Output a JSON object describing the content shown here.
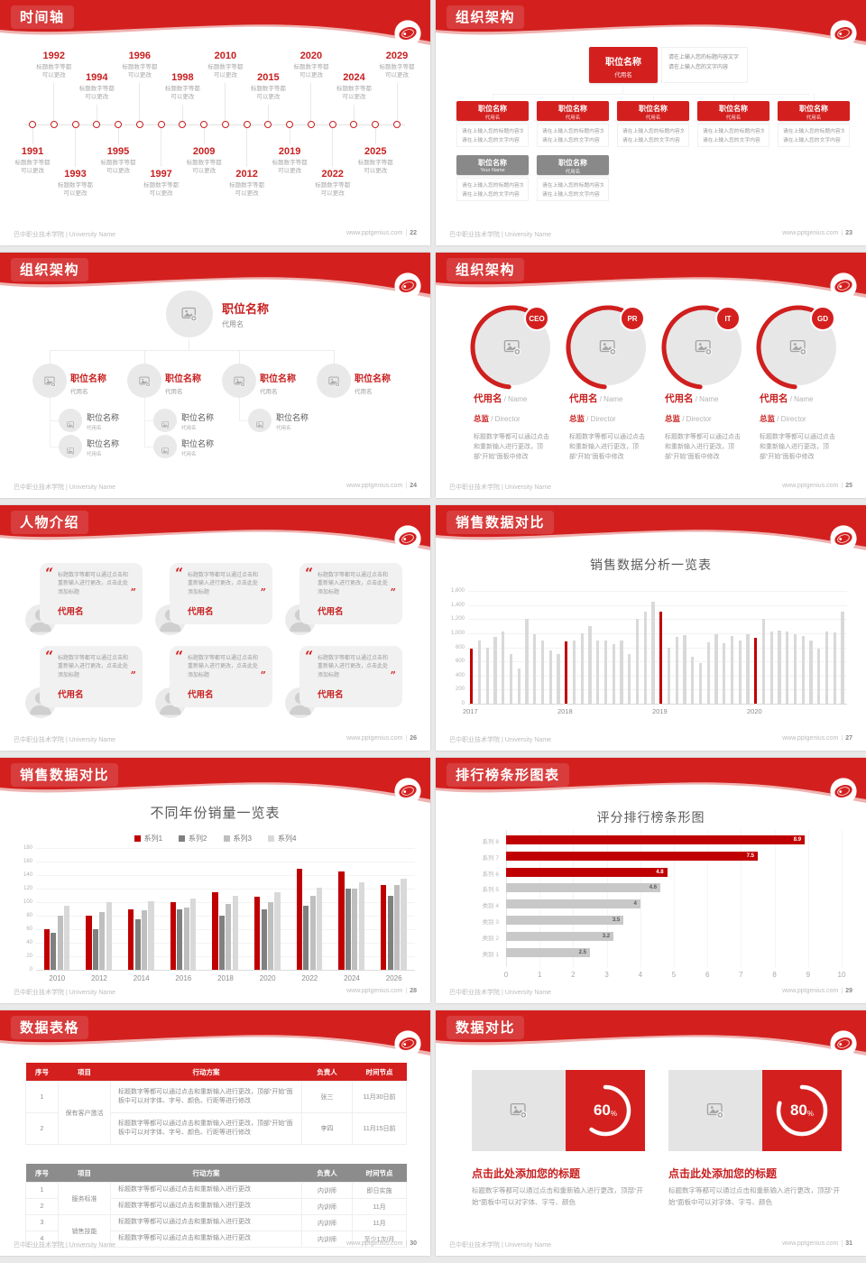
{
  "footer": {
    "left": "巴中职业技术学院 | University Name",
    "site": "www.pptgenius.com",
    "sep": "|"
  },
  "colors": {
    "header_red": "#d3201f",
    "accent_red": "#c81e1e",
    "chart_red": "#c00000",
    "bar_gray": "#d9d9d9",
    "hbar_gray": "#c8c8c8",
    "gray_box": "#898989",
    "text_gray": "#9a9a9a"
  },
  "slides": {
    "s22": {
      "title": "时间轴",
      "page": "22",
      "caption": [
        "标题数字等都",
        "可以更改"
      ],
      "years": [
        {
          "y": "1991",
          "side": "below",
          "lvl": 0
        },
        {
          "y": "1992",
          "side": "above",
          "lvl": 0
        },
        {
          "y": "1993",
          "side": "below",
          "lvl": 1
        },
        {
          "y": "1994",
          "side": "above",
          "lvl": 1
        },
        {
          "y": "1995",
          "side": "below",
          "lvl": 0
        },
        {
          "y": "1996",
          "side": "above",
          "lvl": 0
        },
        {
          "y": "1997",
          "side": "below",
          "lvl": 1
        },
        {
          "y": "1998",
          "side": "above",
          "lvl": 1
        },
        {
          "y": "2009",
          "side": "below",
          "lvl": 0
        },
        {
          "y": "2010",
          "side": "above",
          "lvl": 0
        },
        {
          "y": "2012",
          "side": "below",
          "lvl": 1
        },
        {
          "y": "2015",
          "side": "above",
          "lvl": 1
        },
        {
          "y": "2019",
          "side": "below",
          "lvl": 0
        },
        {
          "y": "2020",
          "side": "above",
          "lvl": 0
        },
        {
          "y": "2022",
          "side": "below",
          "lvl": 1
        },
        {
          "y": "2024",
          "side": "above",
          "lvl": 1
        },
        {
          "y": "2025",
          "side": "below",
          "lvl": 0
        },
        {
          "y": "2029",
          "side": "above",
          "lvl": 0
        }
      ]
    },
    "s23": {
      "title": "组织架构",
      "page": "23",
      "root": {
        "t": "职位名称",
        "s": "代用名"
      },
      "root_note": [
        "请在上输入您的标题内容文字",
        "请在上输入您的文字内容"
      ],
      "children": [
        {
          "t": "职位名称",
          "s": "代用名"
        },
        {
          "t": "职位名称",
          "s": "代用名"
        },
        {
          "t": "职位名称",
          "s": "代用名"
        },
        {
          "t": "职位名称",
          "s": "代用名"
        },
        {
          "t": "职位名称",
          "s": "代用名"
        }
      ],
      "gray": [
        {
          "t": "职位名称",
          "s": "Your Name"
        },
        {
          "t": "职位名称",
          "s": "代用名"
        }
      ],
      "note": [
        "请在上输入您的标题内容文字",
        "请在上输入您的文字内容"
      ]
    },
    "s24": {
      "title": "组织架构",
      "page": "24",
      "root": {
        "t": "职位名称",
        "s": "代用名"
      },
      "node": {
        "t": "职位名称",
        "s": "代用名"
      },
      "sub": {
        "t": "职位名称",
        "s": "代用名"
      },
      "branches": [
        2,
        2,
        1,
        0
      ]
    },
    "s25": {
      "title": "组织架构",
      "page": "25",
      "badges": [
        "CEO",
        "PR",
        "IT",
        "GD"
      ],
      "name": "代用名",
      "name_en": "Name",
      "role": "总监",
      "role_en": "Director",
      "text": "标题数字等都可以通过点击和重新输入进行更改，顶部“开始”面板中修改"
    },
    "s26": {
      "title": "人物介绍",
      "page": "26",
      "quote": "标题数字等都可以通过点击和重新输入进行更改，点击此处添加标题",
      "name": "代用名",
      "card_count": 6
    },
    "s27": {
      "title": "销售数据对比",
      "page": "27"
    },
    "s28": {
      "title": "销售数据对比",
      "page": "28"
    },
    "s29": {
      "title": "排行榜条形图表",
      "page": "29"
    },
    "s30": {
      "title": "数据表格",
      "page": "30",
      "headers": [
        "序号",
        "项目",
        "行动方案",
        "负责人",
        "时间节点"
      ],
      "table1": [
        {
          "no": "1",
          "item": "保有客户激活",
          "plan": "标题数字等都可以通过点击和重新输入进行更改，顶部“开始”面板中可以对字体、字号、颜色、行距等进行修改",
          "owner": "张三",
          "due": "11月30日前"
        },
        {
          "no": "2",
          "item": "",
          "plan": "标题数字等都可以通过点击和重新输入进行更改，顶部“开始”面板中可以对字体、字号、颜色、行距等进行修改",
          "owner": "李四",
          "due": "11月15日前"
        }
      ],
      "table2": [
        {
          "no": "1",
          "item": "服务标准",
          "plan": "标题数字等都可以通过点击和重新输入进行更改",
          "owner": "内训师",
          "due": "即日实施"
        },
        {
          "no": "2",
          "item": "",
          "plan": "标题数字等都可以通过点击和重新输入进行更改",
          "owner": "内训师",
          "due": "11月"
        },
        {
          "no": "3",
          "item": "销售技能",
          "plan": "标题数字等都可以通过点击和重新输入进行更改",
          "owner": "内训师",
          "due": "11月"
        },
        {
          "no": "4",
          "item": "",
          "plan": "标题数字等都可以通过点击和重新输入进行更改",
          "owner": "内训师",
          "due": "至少1次/月"
        }
      ]
    },
    "s31": {
      "title": "数据对比",
      "page": "31",
      "item_title": "点击此处添加您的标题",
      "item_text": "标题数字等都可以通过点击和重新输入进行更改，顶部“开始”面板中可以对字体、字号、颜色",
      "percents": [
        60,
        80
      ]
    }
  },
  "chart_data": [
    {
      "id": "monthly-sales",
      "type": "bar",
      "title": "销售数据分析一览表",
      "ylabel": "",
      "ylim": [
        0,
        1600
      ],
      "ytick_step": 200,
      "grid": true,
      "x_year_labels": [
        "2017",
        "2018",
        "2019",
        "2020"
      ],
      "highlight_indices": [
        0,
        12,
        24,
        36
      ],
      "bar_color": "#d9d9d9",
      "highlight_color": "#c00000",
      "values": [
        780,
        900,
        800,
        950,
        1020,
        700,
        500,
        1200,
        980,
        890,
        760,
        700,
        880,
        890,
        1000,
        1100,
        900,
        900,
        850,
        900,
        700,
        1200,
        1300,
        1450,
        1300,
        800,
        950,
        970,
        660,
        580,
        870,
        980,
        860,
        960,
        890,
        980,
        940,
        1200,
        1030,
        1040,
        1030,
        990,
        960,
        890,
        780,
        1020,
        1010,
        1300
      ]
    },
    {
      "id": "yearly-sales",
      "type": "bar",
      "title": "不同年份销量一览表",
      "categories": [
        "2010",
        "2012",
        "2014",
        "2016",
        "2018",
        "2020",
        "2022",
        "2024",
        "2026"
      ],
      "ylim": [
        0,
        180
      ],
      "ytick_step": 20,
      "grid": true,
      "legend_position": "top",
      "series": [
        {
          "name": "系列1",
          "color": "#c00000",
          "values": [
            60,
            80,
            90,
            100,
            115,
            108,
            150,
            145,
            125
          ]
        },
        {
          "name": "系列2",
          "color": "#808080",
          "values": [
            55,
            60,
            75,
            90,
            80,
            90,
            95,
            120,
            110
          ]
        },
        {
          "name": "系列3",
          "color": "#bfbfbf",
          "values": [
            80,
            85,
            88,
            92,
            97,
            100,
            110,
            120,
            125
          ]
        },
        {
          "name": "系列4",
          "color": "#d9d9d9",
          "values": [
            95,
            100,
            102,
            105,
            110,
            115,
            122,
            130,
            135
          ]
        }
      ]
    },
    {
      "id": "score-ranking",
      "type": "bar",
      "orientation": "horizontal",
      "title": "评分排行榜条形图",
      "categories": [
        "系列 8",
        "系列 7",
        "系列 6",
        "系列 5",
        "类别 4",
        "类别 3",
        "类别 2",
        "类别 1"
      ],
      "values": [
        8.9,
        7.5,
        4.8,
        4.6,
        4,
        3.5,
        3.2,
        2.5
      ],
      "colors": [
        "#c00000",
        "#c00000",
        "#c00000",
        "#c8c8c8",
        "#c8c8c8",
        "#c8c8c8",
        "#c8c8c8",
        "#c8c8c8"
      ],
      "xlim": [
        0,
        10
      ],
      "xtick_step": 1,
      "grid": true
    },
    {
      "id": "progress-donuts",
      "type": "pie",
      "values": [
        60,
        80
      ],
      "unit": "%"
    }
  ]
}
